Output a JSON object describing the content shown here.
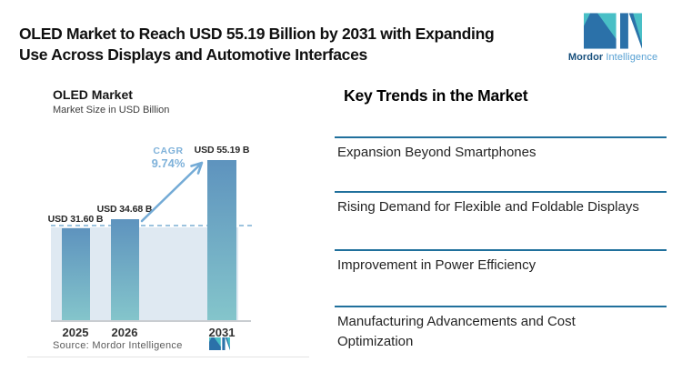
{
  "header": {
    "title_line1": "OLED Market to Reach USD 55.19 Billion by 2031 with Expanding",
    "title_line2": "Use Across Displays and Automotive Interfaces"
  },
  "brand": {
    "name_bold": "Mordor",
    "name_light": "Intelligence"
  },
  "chart": {
    "title": "OLED Market",
    "subtitle": "Market Size in USD Billion",
    "cagr_label": "CAGR",
    "cagr_value": "9.74%",
    "source": "Source: Mordor Intelligence"
  },
  "chart_data": {
    "type": "bar",
    "title": "OLED Market",
    "subtitle": "Market Size in USD Billion",
    "categories": [
      "2025",
      "2026",
      "2031"
    ],
    "values": [
      31.6,
      34.68,
      55.19
    ],
    "bar_labels": [
      "USD 31.60 B",
      "USD 34.68 B",
      "USD 55.19 B"
    ],
    "unit": "USD Billion",
    "ylim": [
      0,
      55.19
    ],
    "grid": false,
    "legend": false,
    "reference_line": {
      "style": "dashed",
      "value": 31.6
    },
    "annotation_arrow": {
      "from_category": "2026",
      "to_category": "2031",
      "label": "CAGR 9.74%"
    },
    "source": "Source: Mordor Intelligence"
  },
  "trends": {
    "heading": "Key Trends in the Market",
    "items": [
      {
        "label": "Expansion Beyond Smartphones"
      },
      {
        "label": "Rising Demand for Flexible and Foldable Displays"
      },
      {
        "label": "Improvement in Power Efficiency"
      },
      {
        "label": "Manufacturing Advancements and Cost Optimization"
      }
    ]
  },
  "colors": {
    "bar_gradient_top": "#5e93be",
    "bar_gradient_bottom": "#84c5cb",
    "plot_background": "#dfe9f2",
    "dashed_line": "#9cc3de",
    "cagr_accent": "#7fb2da",
    "trend_rule": "#20709c",
    "logo_teal": "#49bfc6",
    "logo_blue": "#2b71a9"
  }
}
